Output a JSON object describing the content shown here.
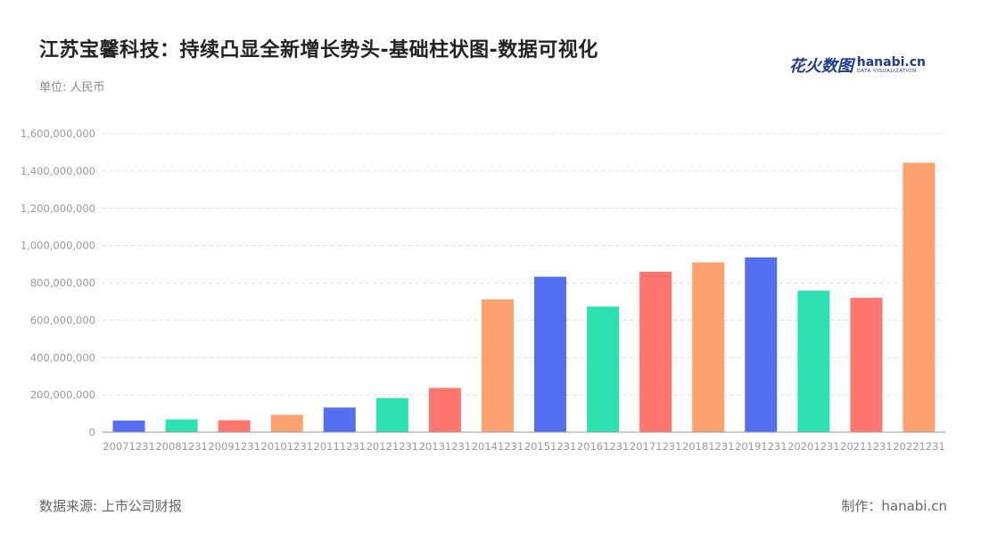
{
  "header": {
    "title": "江苏宝馨科技：持续凸显全新增长势头-基础柱状图-数据可视化",
    "unit": "单位: 人民币",
    "logo_cn": "花火数图",
    "logo_en": "hanabi.cn",
    "logo_sub": "DATA VISUALIZATION"
  },
  "footer": {
    "source": "数据来源: 上市公司财报",
    "maker": "制作：hanabi.cn"
  },
  "colors": {
    "palette": [
      "#5470f0",
      "#2de2b0",
      "#ff7670",
      "#ffa270"
    ],
    "grid": "#dddddd",
    "axis": "#999999"
  },
  "chart_data": {
    "type": "bar",
    "title": "江苏宝馨科技：持续凸显全新增长势头-基础柱状图-数据可视化",
    "xlabel": "",
    "ylabel": "",
    "ylim": [
      0,
      1600000000
    ],
    "yticks": [
      "0",
      "200,000,000",
      "400,000,000",
      "600,000,000",
      "800,000,000",
      "1,000,000,000",
      "1,200,000,000",
      "1,400,000,000",
      "1,600,000,000"
    ],
    "grid": true,
    "legend": "none",
    "categories": [
      "20071231",
      "20081231",
      "20091231",
      "20101231",
      "20111231",
      "20121231",
      "20131231",
      "20141231",
      "20151231",
      "20161231",
      "20171231",
      "20181231",
      "20191231",
      "20201231",
      "20211231",
      "20221231"
    ],
    "values": [
      62000000,
      68000000,
      64000000,
      93000000,
      132000000,
      182000000,
      237000000,
      712000000,
      833000000,
      673000000,
      860000000,
      910000000,
      937000000,
      758000000,
      720000000,
      1444000000
    ]
  }
}
